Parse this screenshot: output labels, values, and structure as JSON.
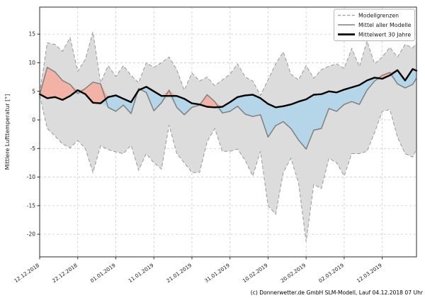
{
  "footer": "(c) Donnerwetter.de GmbH SLM-Modell, Lauf 04.12.2018 07 Uhr",
  "chart_data": {
    "type": "line",
    "title": "",
    "ylabel": "Mittlere Lufttemperatur [°]",
    "ylim": [
      -23.8,
      19.8
    ],
    "yticks": [
      15,
      10,
      5,
      0,
      -5,
      -10,
      -15,
      -20
    ],
    "xlim_days": [
      0,
      99
    ],
    "x_tick_days": [
      0,
      10,
      20,
      30,
      40,
      50,
      60,
      70,
      80,
      90
    ],
    "x_tick_labels": [
      "12.12.2018",
      "22.12.2018",
      "01.01.2019",
      "11.01.2019",
      "21.01.2019",
      "31.01.2019",
      "10.02.2019",
      "20.02.2019",
      "02.03.2019",
      "12.03.2019"
    ],
    "grid": "dashed, both axes",
    "legend": {
      "position": "top-right",
      "entries": [
        {
          "label": "Modellgrenzen",
          "line": "dashed-gray"
        },
        {
          "label": "Mittel aller Modelle",
          "line": "solid-gray"
        },
        {
          "label": "Mittelwert 30 Jahre",
          "line": "thick-black"
        }
      ]
    },
    "colors": {
      "envelope_fill": "#dcdcdc",
      "envelope_line": "#999999",
      "above_climate_fill": "#f2b3a6",
      "below_climate_fill": "#b5d6e8",
      "model_mean_line": "#7f7f7f",
      "climate_line": "#000000",
      "grid_line": "#c9c9c9",
      "spine": "#2b2b2b"
    },
    "days": [
      0,
      2,
      4,
      6,
      8,
      10,
      12,
      14,
      16,
      18,
      20,
      22,
      24,
      26,
      28,
      30,
      32,
      34,
      36,
      38,
      40,
      42,
      44,
      46,
      48,
      50,
      52,
      54,
      56,
      58,
      60,
      62,
      64,
      66,
      68,
      70,
      72,
      74,
      76,
      78,
      80,
      82,
      84,
      86,
      88,
      90,
      92,
      94,
      96,
      98,
      99
    ],
    "series": [
      {
        "name": "Modellgrenzen (oben)",
        "role": "upper_bound",
        "values": [
          4.6,
          13.5,
          13.2,
          12.0,
          14.4,
          8.5,
          10.6,
          15.4,
          6.5,
          9.5,
          7.6,
          9.5,
          7.8,
          6.5,
          10.0,
          9.2,
          10.0,
          11.0,
          8.8,
          5.2,
          8.2,
          6.8,
          7.5,
          6.0,
          7.0,
          8.0,
          9.8,
          7.5,
          6.8,
          4.3,
          7.0,
          9.8,
          11.9,
          8.0,
          7.0,
          9.5,
          7.3,
          8.8,
          9.4,
          9.8,
          9.0,
          12.5,
          9.3,
          13.8,
          9.8,
          11.0,
          12.7,
          11.0,
          13.2,
          12.6,
          13.4
        ]
      },
      {
        "name": "Modellgrenzen (unten)",
        "role": "lower_bound",
        "values": [
          4.3,
          -1.5,
          -2.8,
          -4.2,
          -4.9,
          -3.6,
          -5.0,
          -9.2,
          -4.5,
          -5.2,
          -5.6,
          -5.9,
          -4.4,
          -8.8,
          -5.9,
          -7.5,
          -8.6,
          -0.9,
          -5.9,
          -7.5,
          -9.2,
          -9.2,
          -3.8,
          -1.5,
          -5.5,
          -5.5,
          -5.1,
          -7.1,
          -9.8,
          -5.5,
          -15.0,
          -16.5,
          -9.2,
          -6.7,
          -11.0,
          -21.3,
          -11.3,
          -12.0,
          -6.7,
          -7.5,
          -9.8,
          -5.9,
          -5.9,
          -5.5,
          -2.2,
          1.5,
          1.8,
          -3.0,
          -5.9,
          -6.5,
          -5.1
        ]
      },
      {
        "name": "Mittel aller Modelle",
        "role": "model_mean",
        "values": [
          4.4,
          9.2,
          8.4,
          6.9,
          6.2,
          4.6,
          5.5,
          6.6,
          6.3,
          2.2,
          1.5,
          2.6,
          1.1,
          5.5,
          4.8,
          1.6,
          3.0,
          5.2,
          2.2,
          0.9,
          2.2,
          2.6,
          4.4,
          3.2,
          1.2,
          1.5,
          2.4,
          1.0,
          0.6,
          0.9,
          -3.0,
          -1.0,
          -0.3,
          -1.5,
          -3.5,
          -5.1,
          -1.8,
          -1.5,
          2.0,
          1.5,
          2.7,
          3.2,
          2.7,
          5.2,
          6.8,
          7.8,
          8.3,
          6.3,
          5.6,
          6.2,
          7.3
        ]
      },
      {
        "name": "Mittelwert 30 Jahre",
        "role": "climate_mean",
        "values": [
          4.5,
          3.8,
          4.0,
          3.5,
          4.2,
          5.2,
          4.5,
          3.0,
          2.9,
          4.0,
          4.3,
          3.7,
          3.1,
          5.2,
          5.8,
          5.0,
          4.2,
          4.2,
          4.2,
          3.7,
          2.9,
          2.7,
          2.3,
          2.2,
          2.3,
          3.1,
          4.0,
          4.3,
          4.4,
          3.8,
          2.8,
          2.2,
          2.4,
          2.7,
          3.2,
          3.6,
          4.4,
          4.5,
          5.0,
          4.8,
          5.3,
          5.7,
          6.1,
          6.9,
          7.4,
          7.2,
          7.8,
          8.7,
          6.9,
          8.9,
          8.6
        ]
      }
    ]
  }
}
